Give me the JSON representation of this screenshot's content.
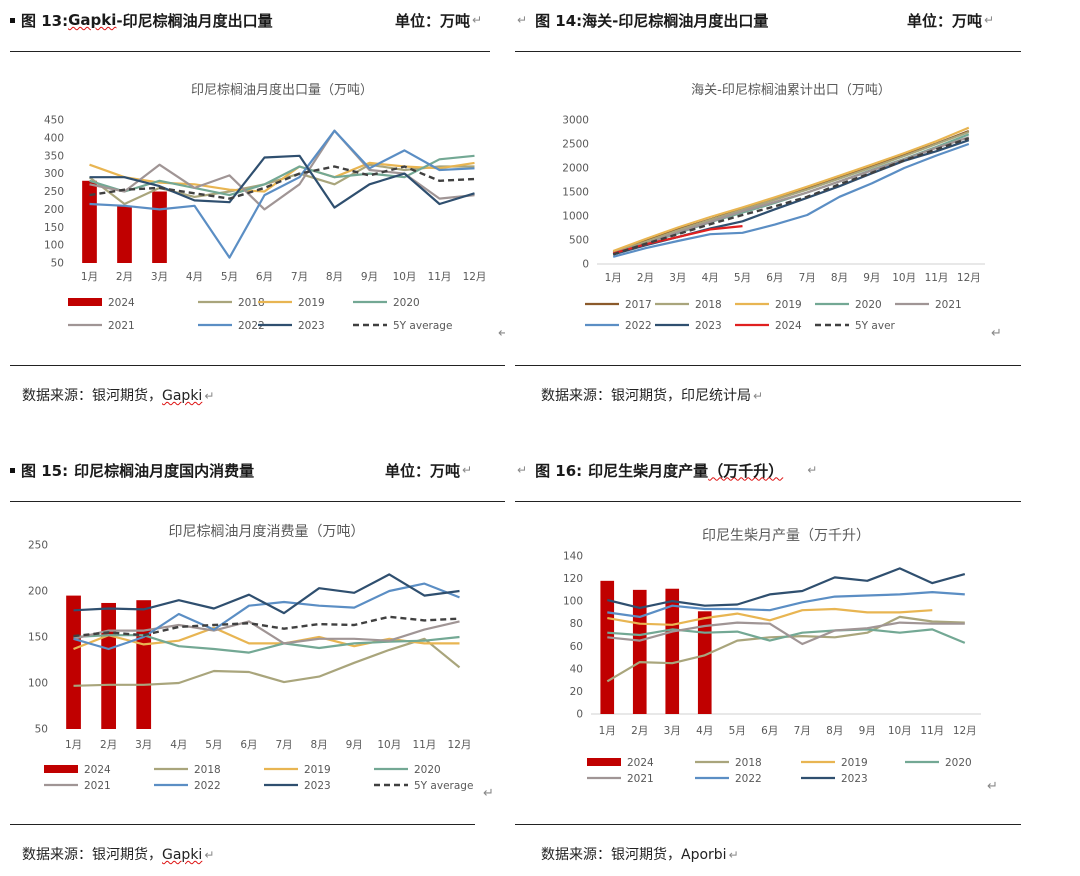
{
  "header_glyph": "↵",
  "figures": [
    {
      "fig_label": "图 13:",
      "fig_title_pre": "",
      "fig_title_squig": "Gapki",
      "fig_title_post": "-印尼棕榈油月度出口量",
      "unit": "单位：万吨",
      "source_pre": "数据来源：银河期货，",
      "source_squig": "Gapki",
      "chart_data": {
        "type": "line",
        "title": "印尼棕榈油月度出口量（万吨）",
        "categories": [
          "1月",
          "2月",
          "3月",
          "4月",
          "5月",
          "6月",
          "7月",
          "8月",
          "9月",
          "10月",
          "11月",
          "12月"
        ],
        "ylim": [
          50,
          450
        ],
        "yticks": [
          50,
          100,
          150,
          200,
          250,
          300,
          350,
          400,
          450
        ],
        "bar_series": {
          "name": "2024",
          "color": "#c00000",
          "values": [
            280,
            210,
            250,
            null,
            null,
            null,
            null,
            null,
            null,
            null,
            null,
            null
          ]
        },
        "series": [
          {
            "name": "2018",
            "color": "#a9a57c",
            "values": [
              290,
              215,
              260,
              235,
              250,
              270,
              300,
              270,
              325,
              310,
              320,
              320
            ]
          },
          {
            "name": "2019",
            "color": "#e8b552",
            "values": [
              325,
              290,
              275,
              270,
              255,
              250,
              320,
              290,
              330,
              320,
              315,
              330
            ]
          },
          {
            "name": "2020",
            "color": "#73a894",
            "values": [
              280,
              250,
              280,
              260,
              240,
              270,
              320,
              290,
              300,
              290,
              340,
              350
            ]
          },
          {
            "name": "2021",
            "color": "#a09595",
            "values": [
              270,
              250,
              325,
              260,
              295,
              200,
              270,
              420,
              310,
              300,
              230,
              240
            ]
          },
          {
            "name": "2022",
            "color": "#5b8ec4",
            "values": [
              215,
              210,
              200,
              210,
              65,
              240,
              290,
              420,
              315,
              365,
              310,
              315
            ]
          },
          {
            "name": "2023",
            "color": "#2f4f6f",
            "values": [
              290,
              290,
              265,
              225,
              220,
              345,
              350,
              205,
              270,
              300,
              215,
              245
            ]
          },
          {
            "name": "5Y average",
            "color": "#404040",
            "dash": true,
            "values": [
              240,
              255,
              260,
              245,
              230,
              260,
              300,
              320,
              295,
              320,
              280,
              285
            ]
          }
        ]
      }
    },
    {
      "fig_label": "图 14:",
      "fig_title_pre": "海关-印尼棕榈油月度出口量",
      "fig_title_squig": "",
      "fig_title_post": "",
      "unit": "单位：万吨",
      "source_pre": "数据来源：银河期货，印尼统计局",
      "source_squig": "",
      "chart_data": {
        "type": "line",
        "title": "海关-印尼棕榈油累计出口（万吨）",
        "categories": [
          "1月",
          "2月",
          "3月",
          "4月",
          "5月",
          "6月",
          "7月",
          "8月",
          "9月",
          "10月",
          "11月",
          "12月"
        ],
        "ylim": [
          0,
          3000
        ],
        "yticks": [
          0,
          500,
          1000,
          1500,
          2000,
          2500,
          3000
        ],
        "series": [
          {
            "name": "2017",
            "color": "#8b5a2b",
            "values": [
              250,
              480,
              720,
              930,
              1150,
              1360,
              1580,
              1800,
              2030,
              2270,
              2510,
              2770
            ]
          },
          {
            "name": "2018",
            "color": "#a9a57c",
            "values": [
              240,
              460,
              700,
              920,
              1130,
              1340,
              1550,
              1780,
              2010,
              2250,
              2500,
              2750
            ]
          },
          {
            "name": "2019",
            "color": "#e8b552",
            "values": [
              270,
              520,
              760,
              980,
              1180,
              1390,
              1610,
              1840,
              2070,
              2310,
              2560,
              2840
            ]
          },
          {
            "name": "2020",
            "color": "#73a894",
            "values": [
              200,
              420,
              640,
              870,
              1070,
              1270,
              1490,
              1720,
              1960,
              2190,
              2440,
              2700
            ]
          },
          {
            "name": "2021",
            "color": "#a09595",
            "values": [
              220,
              420,
              660,
              880,
              1100,
              1290,
              1490,
              1720,
              1950,
              2180,
              2420,
              2640
            ]
          },
          {
            "name": "2022",
            "color": "#5b8ec4",
            "values": [
              150,
              330,
              480,
              620,
              650,
              820,
              1020,
              1400,
              1680,
              2000,
              2260,
              2500
            ]
          },
          {
            "name": "2023",
            "color": "#2f4f6f",
            "values": [
              200,
              390,
              560,
              740,
              890,
              1140,
              1380,
              1620,
              1890,
              2150,
              2350,
              2580
            ]
          },
          {
            "name": "2024",
            "color": "#e02020",
            "values": [
              220,
              410,
              560,
              720,
              790,
              null,
              null,
              null,
              null,
              null,
              null,
              null
            ]
          },
          {
            "name": "5Y aver",
            "color": "#404040",
            "dash": true,
            "values": [
              200,
              420,
              620,
              830,
              1020,
              1200,
              1400,
              1660,
              1900,
              2160,
              2390,
              2620
            ]
          }
        ]
      }
    },
    {
      "fig_label": "图 15:",
      "fig_title_pre": "印尼棕榈油月度国内消费量",
      "fig_title_squig": "",
      "fig_title_post": "",
      "unit": "单位：万吨",
      "source_pre": "数据来源：银河期货，",
      "source_squig": "Gapki",
      "chart_data": {
        "type": "line",
        "title": "印尼棕榈油月度消费量（万吨）",
        "categories": [
          "1月",
          "2月",
          "3月",
          "4月",
          "5月",
          "6月",
          "7月",
          "8月",
          "9月",
          "10月",
          "11月",
          "12月"
        ],
        "ylim": [
          50,
          250
        ],
        "yticks": [
          50,
          100,
          150,
          200,
          250
        ],
        "bar_series": {
          "name": "2024",
          "color": "#c00000",
          "values": [
            195,
            187,
            190,
            null,
            null,
            null,
            null,
            null,
            null,
            null,
            null,
            null
          ]
        },
        "series": [
          {
            "name": "2018",
            "color": "#a9a57c",
            "values": [
              97,
              98,
              98,
              100,
              113,
              112,
              101,
              107,
              122,
              136,
              148,
              117
            ]
          },
          {
            "name": "2019",
            "color": "#e8b552",
            "values": [
              137,
              152,
              142,
              146,
              160,
              143,
              143,
              150,
              140,
              148,
              143,
              143
            ]
          },
          {
            "name": "2020",
            "color": "#73a894",
            "values": [
              150,
              152,
              152,
              140,
              137,
              133,
              143,
              138,
              143,
              145,
              146,
              150
            ]
          },
          {
            "name": "2021",
            "color": "#a09595",
            "values": [
              148,
              157,
              157,
              163,
              157,
              167,
              143,
              148,
              148,
              146,
              158,
              167
            ]
          },
          {
            "name": "2022",
            "color": "#5b8ec4",
            "values": [
              148,
              137,
              150,
              175,
              158,
              184,
              188,
              184,
              182,
              200,
              208,
              193
            ]
          },
          {
            "name": "2023",
            "color": "#2f4f6f",
            "values": [
              179,
              181,
              180,
              190,
              181,
              196,
              176,
              203,
              198,
              218,
              195,
              200
            ]
          },
          {
            "name": "5Y average",
            "color": "#404040",
            "dash": true,
            "values": [
              151,
              155,
              152,
              161,
              163,
              165,
              159,
              164,
              163,
              172,
              168,
              170
            ]
          }
        ]
      }
    },
    {
      "fig_label": "图 16:",
      "fig_title_pre": "印尼生柴月度产量",
      "fig_title_squig": "（万千升）",
      "fig_title_post": "",
      "unit": "",
      "source_pre": "数据来源：银河期货，",
      "source_squig": "Aporbi",
      "chart_data": {
        "type": "line",
        "title": "印尼生柴月产量（万千升）",
        "categories": [
          "1月",
          "2月",
          "3月",
          "4月",
          "5月",
          "6月",
          "7月",
          "8月",
          "9月",
          "10月",
          "11月",
          "12月"
        ],
        "ylim": [
          0,
          140
        ],
        "yticks": [
          0,
          20,
          40,
          60,
          80,
          100,
          120,
          140
        ],
        "bar_series": {
          "name": "2024",
          "color": "#c00000",
          "values": [
            118,
            110,
            111,
            91,
            null,
            null,
            null,
            null,
            null,
            null,
            null,
            null
          ]
        },
        "series": [
          {
            "name": "2018",
            "color": "#a9a57c",
            "values": [
              29,
              46,
              45,
              52,
              65,
              68,
              69,
              68,
              72,
              86,
              82,
              81
            ]
          },
          {
            "name": "2019",
            "color": "#e8b552",
            "values": [
              85,
              80,
              79,
              85,
              89,
              83,
              92,
              93,
              90,
              90,
              92,
              null
            ]
          },
          {
            "name": "2020",
            "color": "#73a894",
            "values": [
              72,
              70,
              75,
              72,
              73,
              65,
              72,
              74,
              75,
              72,
              75,
              63
            ]
          },
          {
            "name": "2021",
            "color": "#a09595",
            "values": [
              68,
              65,
              73,
              78,
              81,
              80,
              62,
              74,
              76,
              81,
              80,
              80
            ]
          },
          {
            "name": "2022",
            "color": "#5b8ec4",
            "values": [
              90,
              86,
              96,
              93,
              93,
              92,
              99,
              104,
              105,
              106,
              108,
              106
            ]
          },
          {
            "name": "2023",
            "color": "#2f4f6f",
            "values": [
              101,
              94,
              100,
              96,
              97,
              106,
              109,
              121,
              118,
              129,
              116,
              124
            ]
          }
        ]
      }
    }
  ]
}
